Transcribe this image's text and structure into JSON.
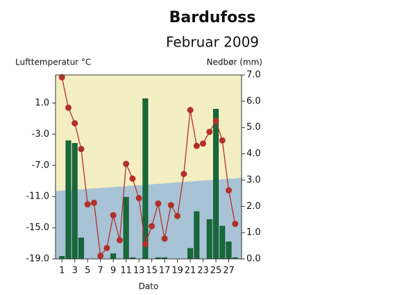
{
  "chart_data": {
    "type": "combo",
    "title": "Bardufoss",
    "subtitle": "Februar 2009",
    "y_label": "Lufttemperatur °C",
    "y2_label": "Nedbør (mm)",
    "x_label": "Dato",
    "x": [
      1,
      2,
      3,
      4,
      5,
      6,
      7,
      8,
      9,
      10,
      11,
      12,
      13,
      14,
      15,
      16,
      17,
      18,
      19,
      20,
      21,
      22,
      23,
      24,
      25,
      26,
      27,
      28
    ],
    "xlim": [
      0,
      29
    ],
    "xticks": [
      1,
      3,
      5,
      7,
      9,
      11,
      13,
      15,
      17,
      19,
      21,
      23,
      25,
      27
    ],
    "ylim": [
      -19,
      4.6
    ],
    "yticks": [
      {
        "value": -19,
        "label": "-19.0"
      },
      {
        "value": -15,
        "label": "-15.0"
      },
      {
        "value": -11,
        "label": "-11.0"
      },
      {
        "value": -7,
        "label": "-7.0"
      },
      {
        "value": -3,
        "label": "-3.0"
      },
      {
        "value": 1,
        "label": "1.0"
      }
    ],
    "y2lim": [
      0,
      7
    ],
    "y2ticks": [
      {
        "value": 0,
        "label": "0.0"
      },
      {
        "value": 1,
        "label": "1.0"
      },
      {
        "value": 2,
        "label": "2.0"
      },
      {
        "value": 3,
        "label": "3.0"
      },
      {
        "value": 4,
        "label": "4.0"
      },
      {
        "value": 5,
        "label": "5.0"
      },
      {
        "value": 6,
        "label": "6.0"
      },
      {
        "value": 7,
        "label": "7.0"
      }
    ],
    "background_color": "#f4efc3",
    "band": {
      "color": "#a8c3d6",
      "values": [
        -10.3,
        -8.6
      ]
    },
    "series": [
      {
        "type": "bar",
        "axis": "y2",
        "color": "#17693a",
        "values": [
          0.1,
          4.5,
          4.4,
          0.8,
          0,
          0,
          0,
          0,
          0.2,
          0,
          2.35,
          0.05,
          0,
          6.1,
          0,
          0.05,
          0.05,
          0,
          0,
          0,
          0.4,
          1.8,
          0,
          1.5,
          5.7,
          1.25,
          0.65,
          0.05
        ]
      },
      {
        "type": "line",
        "color": "#b3302a",
        "values": [
          4.3,
          0.4,
          -1.6,
          -4.9,
          -12.0,
          -11.8,
          -18.6,
          -17.6,
          -13.4,
          -16.6,
          -6.8,
          -8.7,
          -11.2,
          -17.1,
          -14.8,
          -11.9,
          -16.4,
          -12.1,
          -13.5,
          -8.1,
          0.1,
          -4.5,
          -4.2,
          -2.7,
          -1.3,
          -3.8,
          -10.2,
          -14.5
        ]
      }
    ]
  }
}
